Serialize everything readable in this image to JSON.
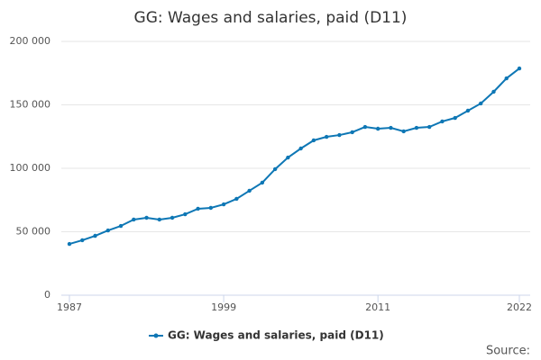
{
  "chart_data": {
    "type": "line",
    "title": "GG: Wages and salaries, paid (D11)",
    "x": [
      1987,
      1988,
      1989,
      1990,
      1991,
      1992,
      1993,
      1994,
      1995,
      1996,
      1997,
      1998,
      1999,
      2000,
      2001,
      2002,
      2003,
      2004,
      2005,
      2006,
      2007,
      2008,
      2009,
      2010,
      2011,
      2012,
      2013,
      2014,
      2015,
      2016,
      2017,
      2018,
      2019,
      2020,
      2021,
      2022
    ],
    "series": [
      {
        "name": "GG: Wages and salaries, paid (D11)",
        "color": "#0e77b5",
        "values": [
          40400,
          43300,
          46800,
          51000,
          54600,
          59600,
          61000,
          59600,
          61000,
          63800,
          68100,
          68800,
          71600,
          75900,
          82300,
          88700,
          99300,
          108500,
          115600,
          122000,
          124800,
          126200,
          128400,
          132600,
          131200,
          131900,
          129100,
          131900,
          132600,
          136900,
          139700,
          145400,
          151100,
          160300,
          170900,
          178700
        ]
      }
    ],
    "xlim": [
      1987,
      2022
    ],
    "xticks": [
      1987,
      1999,
      2011,
      2022
    ],
    "ylim": [
      0,
      200000
    ],
    "yticks": [
      0,
      {
        "value": 50000,
        "label": "50 000"
      },
      {
        "value": 100000,
        "label": "100 000"
      },
      {
        "value": 150000,
        "label": "150 000"
      },
      {
        "value": 200000,
        "label": "200 000"
      }
    ],
    "grid": true,
    "legend": "bottom",
    "source": "Source:"
  }
}
